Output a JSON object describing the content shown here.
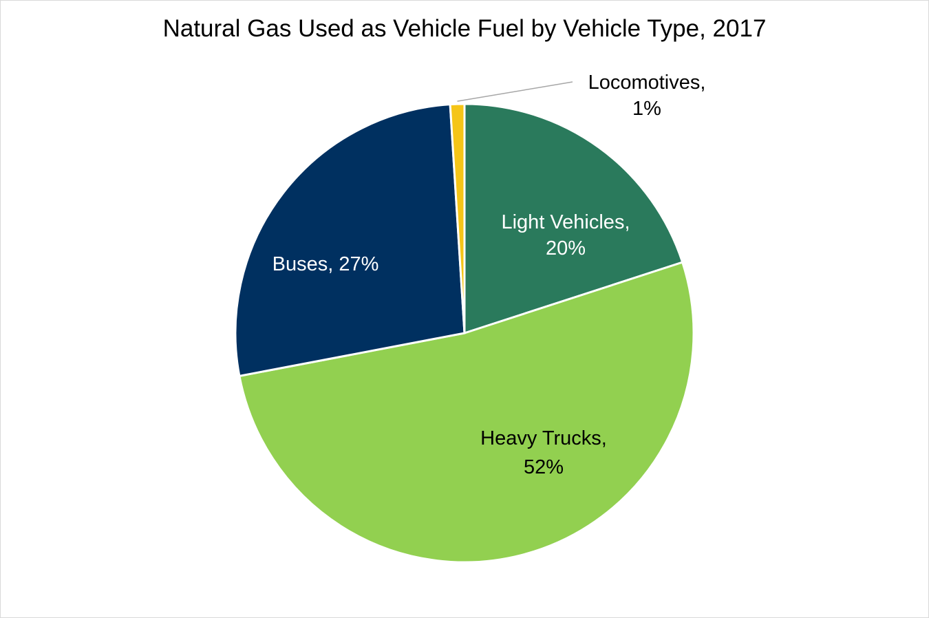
{
  "chart_data": {
    "type": "pie",
    "title": "Natural Gas Used as Vehicle Fuel by Vehicle Type, 2017",
    "slices": [
      {
        "name": "Light Vehicles",
        "value": 20,
        "label_lines": [
          "Light Vehicles,",
          "20%"
        ],
        "color": "#2a7a5c",
        "label_color": "#ffffff"
      },
      {
        "name": "Heavy Trucks",
        "value": 52,
        "label_lines": [
          "Heavy Trucks,",
          "52%"
        ],
        "color": "#92d050",
        "label_color": "#000000"
      },
      {
        "name": "Buses",
        "value": 27,
        "label_lines": [
          "Buses, 27%"
        ],
        "color": "#003060",
        "label_color": "#ffffff"
      },
      {
        "name": "Locomotives",
        "value": 1,
        "label_lines": [
          "Locomotives,",
          "1%"
        ],
        "color": "#f5c518",
        "label_color": "#000000"
      }
    ],
    "start_angle_deg": 0,
    "direction": "clockwise",
    "legend": "none"
  }
}
